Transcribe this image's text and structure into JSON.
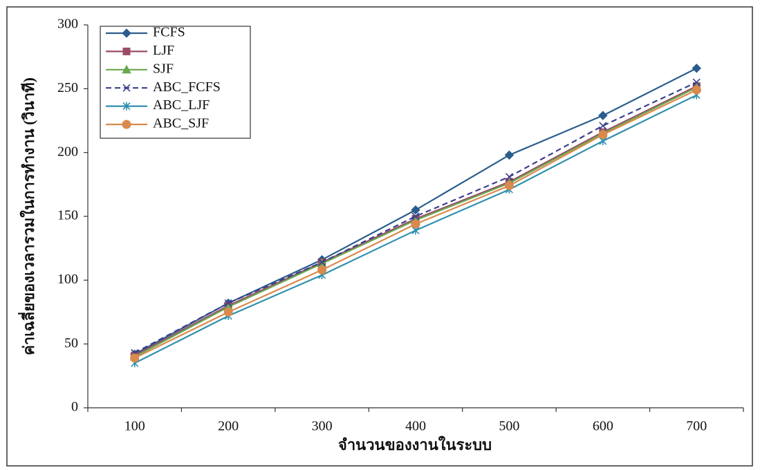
{
  "chart_data": {
    "type": "line",
    "x_label": "จำนวนของงานในระบบ",
    "y_label": "ค่าเฉลี่ยของเวลารวมในการทำงาน (วินาที)",
    "categories": [
      "100",
      "200",
      "300",
      "400",
      "500",
      "600",
      "700"
    ],
    "ylim": [
      0,
      300
    ],
    "yticks": [
      0,
      50,
      100,
      150,
      200,
      250,
      300
    ],
    "grid": false,
    "legend": "top-left",
    "series": [
      {
        "name": "FCFS",
        "color": "#2a5d8c",
        "marker": "diamond",
        "dashed": false,
        "values": [
          42,
          82,
          116,
          155,
          198,
          229,
          266
        ]
      },
      {
        "name": "LJF",
        "color": "#9b4a68",
        "marker": "square",
        "dashed": false,
        "values": [
          41,
          80,
          114,
          148,
          177,
          216,
          252
        ]
      },
      {
        "name": "SJF",
        "color": "#6aa84f",
        "marker": "triangle",
        "dashed": false,
        "values": [
          40,
          79,
          113,
          147,
          176,
          215,
          251
        ]
      },
      {
        "name": "ABC_FCFS",
        "color": "#3b3f8c",
        "marker": "x",
        "dashed": true,
        "values": [
          43,
          82,
          114,
          150,
          181,
          221,
          255
        ]
      },
      {
        "name": "ABC_LJF",
        "color": "#2e8fad",
        "marker": "asterisk",
        "dashed": false,
        "values": [
          35,
          72,
          104,
          139,
          171,
          209,
          245
        ]
      },
      {
        "name": "ABC_SJF",
        "color": "#d98a4c",
        "marker": "circle",
        "dashed": false,
        "values": [
          39,
          75,
          108,
          144,
          174,
          214,
          249
        ]
      }
    ]
  }
}
